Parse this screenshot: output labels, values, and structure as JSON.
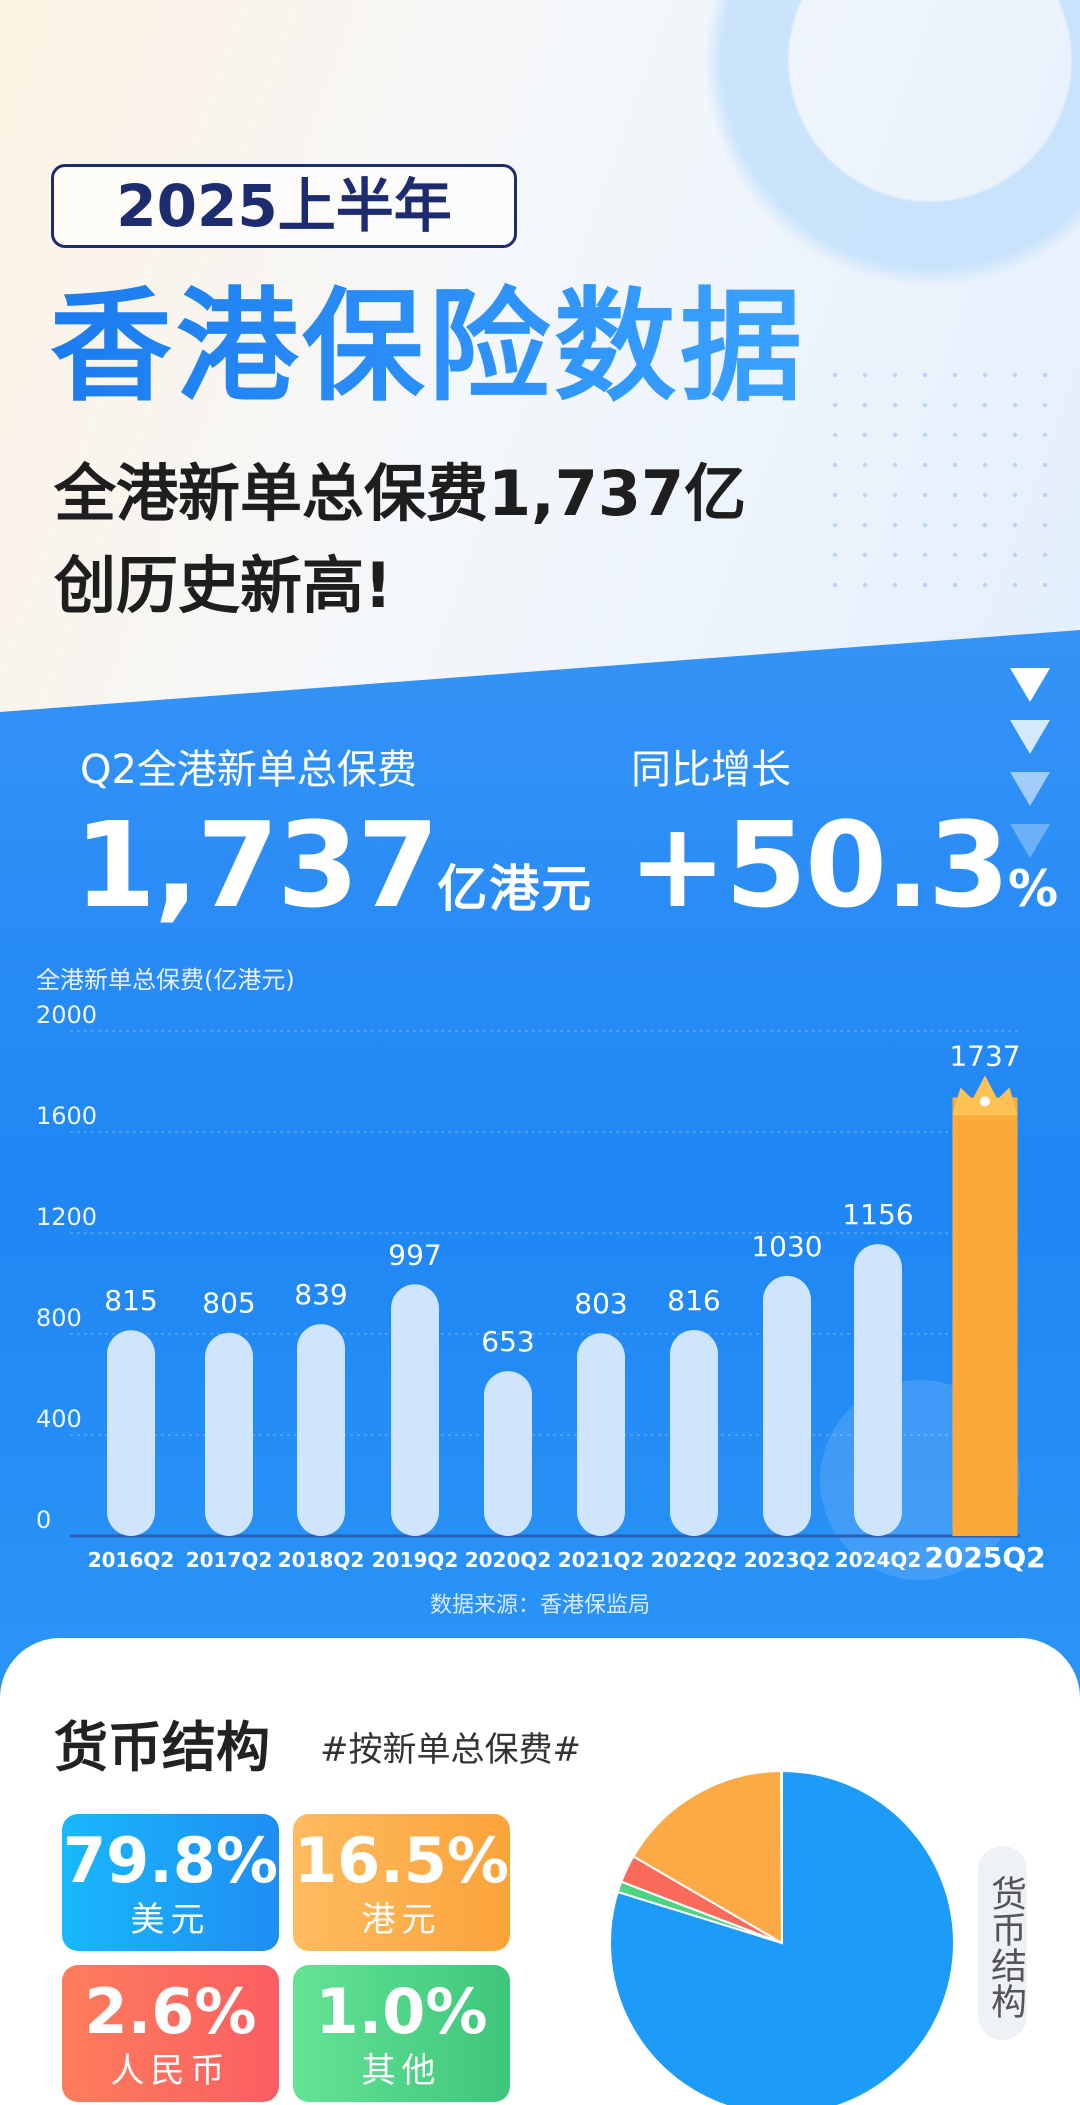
{
  "header": {
    "badge": "2025上半年",
    "title": "香港保险数据",
    "subtitle_line1": "全港新单总保费1,737亿",
    "subtitle_line2": "创历史新高!"
  },
  "kpis": [
    {
      "label": "Q2全港新单总保费",
      "value": "1,737",
      "unit": "亿港元"
    },
    {
      "label": "同比增长",
      "value": "+50.3",
      "unit": "%"
    }
  ],
  "chart_data": {
    "type": "bar",
    "ylabel": "全港新单总保费(亿港元)",
    "categories": [
      "2016Q2",
      "2017Q2",
      "2018Q2",
      "2019Q2",
      "2020Q2",
      "2021Q2",
      "2022Q2",
      "2023Q2",
      "2024Q2",
      "2025Q2"
    ],
    "values": [
      815,
      805,
      839,
      997,
      653,
      803,
      816,
      1030,
      1156,
      1737
    ],
    "value_labels": [
      "815",
      "805",
      "839",
      "997",
      "653",
      "803",
      "816",
      "1030",
      "1156",
      "1737"
    ],
    "yticks": [
      "0",
      "400",
      "800",
      "1200",
      "1600",
      "2000"
    ],
    "ylim": [
      0,
      2000
    ],
    "grid": true,
    "highlight": "2025Q2",
    "colors": {
      "bar": "#cfe5fd",
      "highlight": "#fda93a"
    },
    "source": "数据来源：香港保监局"
  },
  "currency": {
    "title": "货币结构",
    "subtitle": "#按新单总保费#",
    "side_label": "货币结构",
    "items": [
      {
        "pct": "79.8%",
        "name": "美元",
        "value": 79.8,
        "color": "#1c9bf7"
      },
      {
        "pct": "16.5%",
        "name": "港元",
        "value": 16.5,
        "color": "#fcaa45"
      },
      {
        "pct": "2.6%",
        "name": "人民币",
        "value": 2.6,
        "color": "#fb6b5c"
      },
      {
        "pct": "1.0%",
        "name": "其他",
        "value": 1.0,
        "color": "#4ed382"
      }
    ]
  }
}
